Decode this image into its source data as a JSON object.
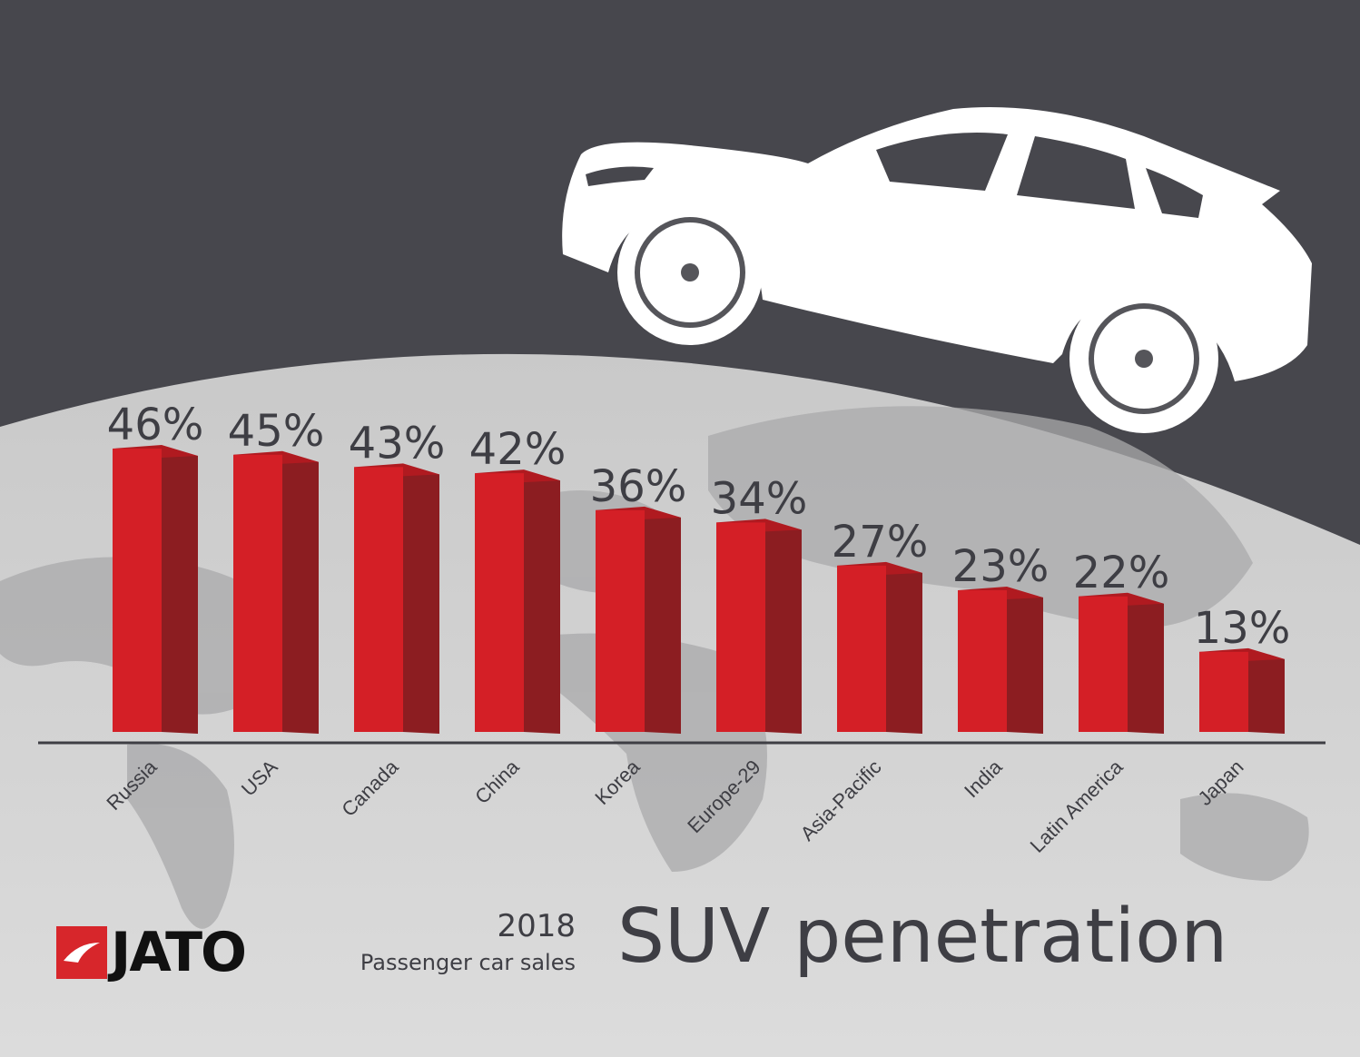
{
  "chart_data": {
    "type": "bar",
    "title": "SUV penetration",
    "subtitle_year": "2018",
    "subtitle": "Passenger car sales",
    "categories": [
      "Russia",
      "USA",
      "Canada",
      "China",
      "Korea",
      "Europe-29",
      "Asia-Pacific",
      "India",
      "Latin America",
      "Japan"
    ],
    "values": [
      46,
      45,
      43,
      42,
      36,
      34,
      27,
      23,
      22,
      13
    ],
    "value_labels": [
      "46%",
      "45%",
      "43%",
      "42%",
      "36%",
      "34%",
      "27%",
      "23%",
      "22%",
      "13%"
    ],
    "ylim": [
      0,
      46
    ],
    "grid": false,
    "colors": {
      "bar": "#d41f26",
      "bar_dark": "#8c1d21",
      "text": "#3e3e44"
    }
  },
  "brand": {
    "logo_text": "JATO"
  }
}
